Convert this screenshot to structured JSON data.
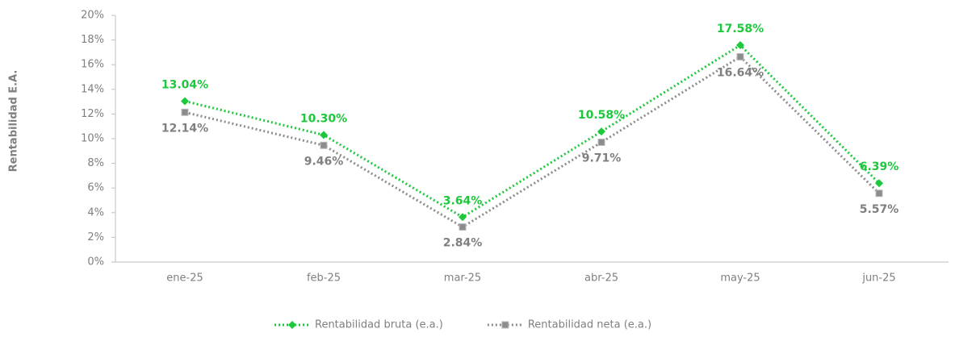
{
  "chart_data": {
    "type": "line",
    "y_label": "Rentabilidad E.A.",
    "categories": [
      "ene-25",
      "feb-25",
      "mar-25",
      "abr-25",
      "may-25",
      "jun-25"
    ],
    "series": [
      {
        "name": "Rentabilidad bruta (e.a.)",
        "color": "#1ec83c",
        "marker": "diamond",
        "values": [
          13.04,
          10.3,
          3.64,
          10.58,
          17.58,
          6.39
        ],
        "value_labels": [
          "13.04%",
          "10.30%",
          "3.64%",
          "10.58%",
          "17.58%",
          "6.39%"
        ]
      },
      {
        "name": "Rentabilidad neta (e.a.)",
        "color": "#8c8c8c",
        "marker": "square",
        "values": [
          12.14,
          9.46,
          2.84,
          9.71,
          16.64,
          5.57
        ],
        "value_labels": [
          "12.14%",
          "9.46%",
          "2.84%",
          "9.71%",
          "16.64%",
          "5.57%"
        ]
      }
    ],
    "ylim": [
      0,
      20
    ],
    "yticks": [
      {
        "value": 0,
        "label": "0%"
      },
      {
        "value": 2,
        "label": "2%"
      },
      {
        "value": 4,
        "label": "4%"
      },
      {
        "value": 6,
        "label": "6%"
      },
      {
        "value": 8,
        "label": "8%"
      },
      {
        "value": 10,
        "label": "10%"
      },
      {
        "value": 12,
        "label": "12%"
      },
      {
        "value": 14,
        "label": "14%"
      },
      {
        "value": 16,
        "label": "16%"
      },
      {
        "value": 18,
        "label": "18%"
      },
      {
        "value": 20,
        "label": "20%"
      }
    ],
    "grid": false,
    "legend": "bottom"
  }
}
